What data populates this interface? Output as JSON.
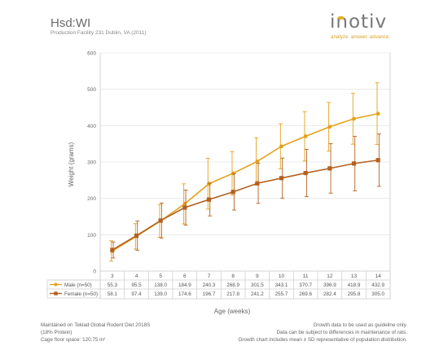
{
  "header": {
    "title": "Hsd:WI",
    "subtitle": "Production Facility 231 Dublin, VA (2011)"
  },
  "logo": {
    "wordmark": "inotiv",
    "tagline": "analyze. answer. advance."
  },
  "colors": {
    "male": "#e3a21a",
    "female": "#b5601f",
    "grid": "#e6e6e6",
    "axis": "#c9c9c9",
    "table_border": "#cfcfcf"
  },
  "chart_data": {
    "type": "line",
    "ylabel": "Weight (grams)",
    "xlabel": "Age (weeks)",
    "ylim": [
      0,
      600
    ],
    "yticks": [
      "0",
      "100",
      "200",
      "300",
      "400",
      "500",
      "600"
    ],
    "categories": [
      "3",
      "4",
      "5",
      "6",
      "7",
      "8",
      "9",
      "10",
      "11",
      "12",
      "13",
      "14"
    ],
    "grid": true,
    "series": [
      {
        "name": "Male (n=50)",
        "marker": "circle",
        "values": [
          55.3,
          95.5,
          138.0,
          184.9,
          240.3,
          268.9,
          301.5,
          343.1,
          370.7,
          396.9,
          418.9,
          432.9
        ],
        "labels": [
          "55.3",
          "95.5",
          "138.0",
          "184.9",
          "240.3",
          "268.9",
          "301.5",
          "343.1",
          "370.7",
          "396.9",
          "418.9",
          "432.9"
        ],
        "sd": [
          28,
          35,
          45,
          55,
          70,
          60,
          65,
          62,
          68,
          67,
          70,
          85
        ]
      },
      {
        "name": "Female (n=50)",
        "marker": "square",
        "values": [
          58.1,
          97.4,
          139.0,
          174.6,
          196.7,
          217.8,
          241.2,
          255.7,
          269.6,
          282.4,
          295.8,
          305.0
        ],
        "labels": [
          "58.1",
          "97.4",
          "139.0",
          "174.6",
          "196.7",
          "217.8",
          "241.2",
          "255.7",
          "269.6",
          "282.4",
          "295.8",
          "305.0"
        ],
        "sd": [
          22,
          40,
          48,
          48,
          45,
          50,
          55,
          55,
          65,
          68,
          75,
          72
        ]
      }
    ]
  },
  "footer": {
    "left": [
      "Maintained on Teklad Global Rodent Diet 2018S",
      "(18% Protein)",
      "Cage floor space: 120.75 in²"
    ],
    "right": [
      "Growth data to be used as guideline only.",
      "Data can be subject to differences in maintenance of rats.",
      "Growth chart includes mean ± SD representative of population distribution."
    ]
  }
}
